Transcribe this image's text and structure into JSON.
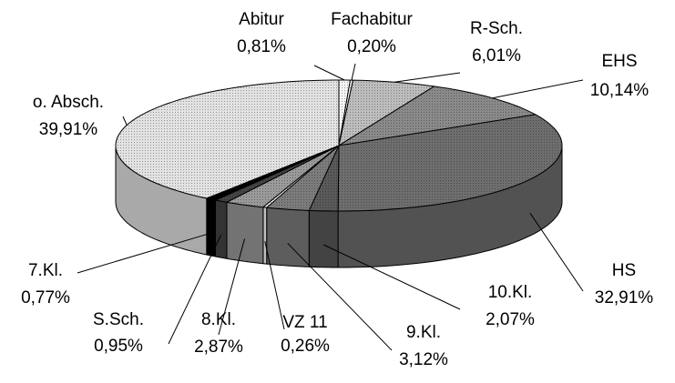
{
  "chart_data": {
    "type": "pie3d",
    "categories": [
      "Abitur",
      "Fachabitur",
      "R-Sch.",
      "EHS",
      "HS",
      "10.Kl.",
      "9.Kl.",
      "VZ 11",
      "8.Kl.",
      "S.Sch.",
      "7.Kl.",
      "o. Absch."
    ],
    "values": [
      0.81,
      0.2,
      6.01,
      10.14,
      32.91,
      2.07,
      3.12,
      0.26,
      2.87,
      0.95,
      0.77,
      39.91
    ],
    "value_labels": [
      "0,81%",
      "0,20%",
      "6,01%",
      "10,14%",
      "32,91%",
      "2,07%",
      "3,12%",
      "0,26%",
      "2,87%",
      "0,95%",
      "0,77%",
      "39,91%"
    ],
    "colors": [
      "#f4f4f4",
      "#ffffff",
      "#bdbdbd",
      "#8a8a8a",
      "#6e6e6e",
      "#5a5a5a",
      "#7c7c7c",
      "#ffffff",
      "#9a9a9a",
      "#444444",
      "#000000",
      "#e2e2e2"
    ]
  }
}
